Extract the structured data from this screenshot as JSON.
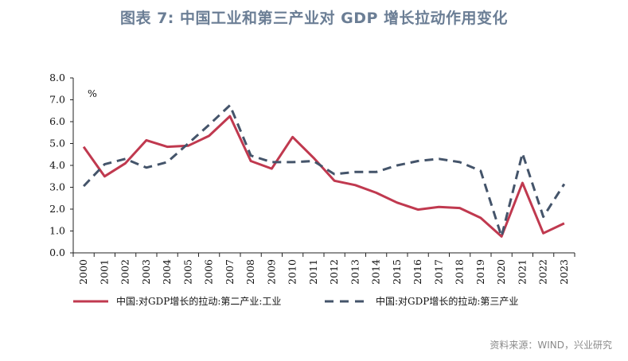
{
  "title": "图表 7:  中国工业和第三产业对 GDP 增长拉动作用变化",
  "source": "资料来源：WIND，兴业研究",
  "chart_data": {
    "type": "line",
    "ylabel": "%",
    "ylim": [
      0,
      8
    ],
    "y_ticks": [
      "0.0",
      "1.0",
      "2.0",
      "3.0",
      "4.0",
      "5.0",
      "6.0",
      "7.0",
      "8.0"
    ],
    "categories": [
      "2000",
      "2001",
      "2002",
      "2003",
      "2004",
      "2005",
      "2006",
      "2007",
      "2008",
      "2009",
      "2010",
      "2011",
      "2012",
      "2013",
      "2014",
      "2015",
      "2016",
      "2017",
      "2018",
      "2019",
      "2020",
      "2021",
      "2022",
      "2023"
    ],
    "series": [
      {
        "name": "中国:对GDP增长的拉动:第二产业:工业",
        "color": "#c0394f",
        "style": "solid",
        "values": [
          4.85,
          3.5,
          4.1,
          5.15,
          4.85,
          4.9,
          5.35,
          6.25,
          4.2,
          3.85,
          5.3,
          4.35,
          3.3,
          3.1,
          2.75,
          2.3,
          1.98,
          2.1,
          2.05,
          1.6,
          0.75,
          3.2,
          0.9,
          1.35
        ]
      },
      {
        "name": "中国:对GDP增长的拉动:第三产业",
        "color": "#44546a",
        "style": "dashed",
        "values": [
          3.05,
          4.05,
          4.3,
          3.9,
          4.15,
          5.0,
          5.85,
          6.75,
          4.45,
          4.15,
          4.15,
          4.2,
          3.6,
          3.7,
          3.7,
          4.0,
          4.2,
          4.3,
          4.15,
          3.75,
          0.75,
          4.55,
          1.65,
          3.15
        ]
      }
    ]
  }
}
